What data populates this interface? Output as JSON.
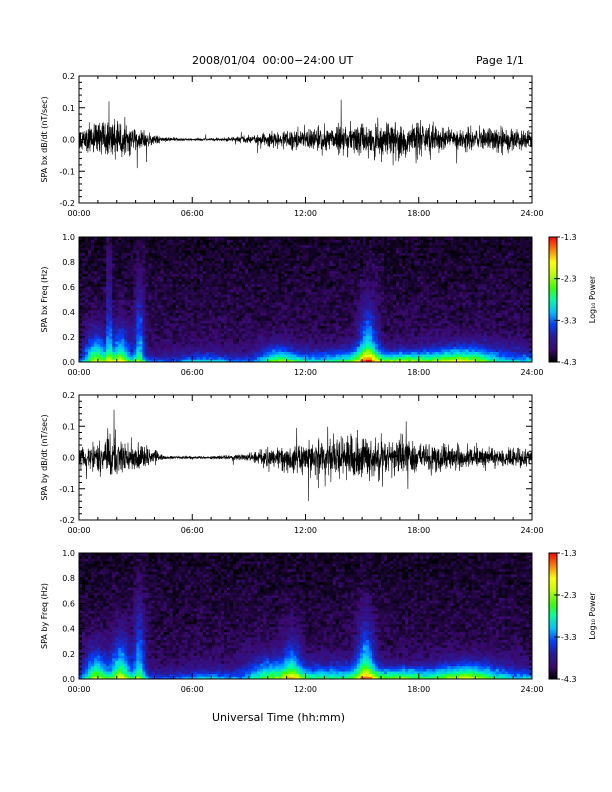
{
  "header": {
    "date_range": "2008/01/04  00:00−24:00 UT",
    "page": "Page 1/1"
  },
  "x_axis_title": "Universal Time (hh:mm)",
  "colorbar": {
    "label": "Log₁₀ Power",
    "range": [
      -4.3,
      -1.3
    ],
    "tick_labels": [
      "-1.3",
      "-2.3",
      "-3.3",
      "-4.3"
    ],
    "colormap": [
      "#000000",
      "#3a0a70",
      "#2a1a9a",
      "#0040ff",
      "#00c0ff",
      "#00ffa0",
      "#40ff00",
      "#c0ff00",
      "#ffff00",
      "#ff8000",
      "#ff0000"
    ]
  },
  "chart_data": [
    {
      "type": "line",
      "ylabel": "SPA bx dB/dt (nT/sec)",
      "xlim": [
        0,
        24
      ],
      "ylim": [
        -0.2,
        0.2
      ],
      "x_tick_labels": [
        "00:00",
        "06:00",
        "12:00",
        "18:00",
        "24:00"
      ],
      "y_tick_labels": [
        "0.2",
        "0.1",
        "0.0",
        "-0.1",
        "-0.2"
      ],
      "amplitude_envelope": {
        "hours": [
          0,
          1,
          2,
          3,
          4,
          4.5,
          5,
          6,
          7,
          8,
          9,
          10,
          11,
          12,
          13,
          14,
          15,
          16,
          17,
          18,
          19,
          20,
          21,
          22,
          23,
          24
        ],
        "amplitude": [
          0.05,
          0.09,
          0.1,
          0.06,
          0.03,
          0.012,
          0.008,
          0.006,
          0.008,
          0.012,
          0.02,
          0.04,
          0.05,
          0.05,
          0.06,
          0.07,
          0.08,
          0.08,
          0.09,
          0.09,
          0.07,
          0.05,
          0.06,
          0.06,
          0.06,
          0.04
        ]
      },
      "color": "#000000"
    },
    {
      "type": "heatmap",
      "ylabel": "SPA bx Freq (Hz)",
      "xlim": [
        0,
        24
      ],
      "ylim": [
        0,
        1.0
      ],
      "x_tick_labels": [
        "00:00",
        "06:00",
        "12:00",
        "18:00",
        "24:00"
      ],
      "y_tick_labels": [
        "1.0",
        "0.8",
        "0.6",
        "0.4",
        "0.2",
        "0.0"
      ],
      "value_range": [
        -4.3,
        -1.3
      ]
    },
    {
      "type": "line",
      "ylabel": "SPA by dB/dt (nT/sec)",
      "xlim": [
        0,
        24
      ],
      "ylim": [
        -0.2,
        0.2
      ],
      "x_tick_labels": [
        "00:00",
        "06:00",
        "12:00",
        "18:00",
        "24:00"
      ],
      "y_tick_labels": [
        "0.2",
        "0.1",
        "0.0",
        "-0.1",
        "-0.2"
      ],
      "amplitude_envelope": {
        "hours": [
          0,
          1,
          2,
          3,
          4,
          4.5,
          5,
          6,
          7,
          8,
          9,
          10,
          11,
          12,
          13,
          14,
          15,
          16,
          17,
          18,
          19,
          20,
          21,
          22,
          23,
          24
        ],
        "amplitude": [
          0.05,
          0.09,
          0.1,
          0.07,
          0.04,
          0.012,
          0.008,
          0.007,
          0.008,
          0.012,
          0.02,
          0.05,
          0.07,
          0.08,
          0.11,
          0.12,
          0.11,
          0.1,
          0.09,
          0.08,
          0.07,
          0.06,
          0.06,
          0.05,
          0.05,
          0.04
        ]
      },
      "color": "#000000"
    },
    {
      "type": "heatmap",
      "ylabel": "SPA by Freq (Hz)",
      "xlim": [
        0,
        24
      ],
      "ylim": [
        0,
        1.0
      ],
      "x_tick_labels": [
        "00:00",
        "06:00",
        "12:00",
        "18:00",
        "24:00"
      ],
      "y_tick_labels": [
        "1.0",
        "0.8",
        "0.6",
        "0.4",
        "0.2",
        "0.0"
      ],
      "value_range": [
        -4.3,
        -1.3
      ]
    }
  ]
}
